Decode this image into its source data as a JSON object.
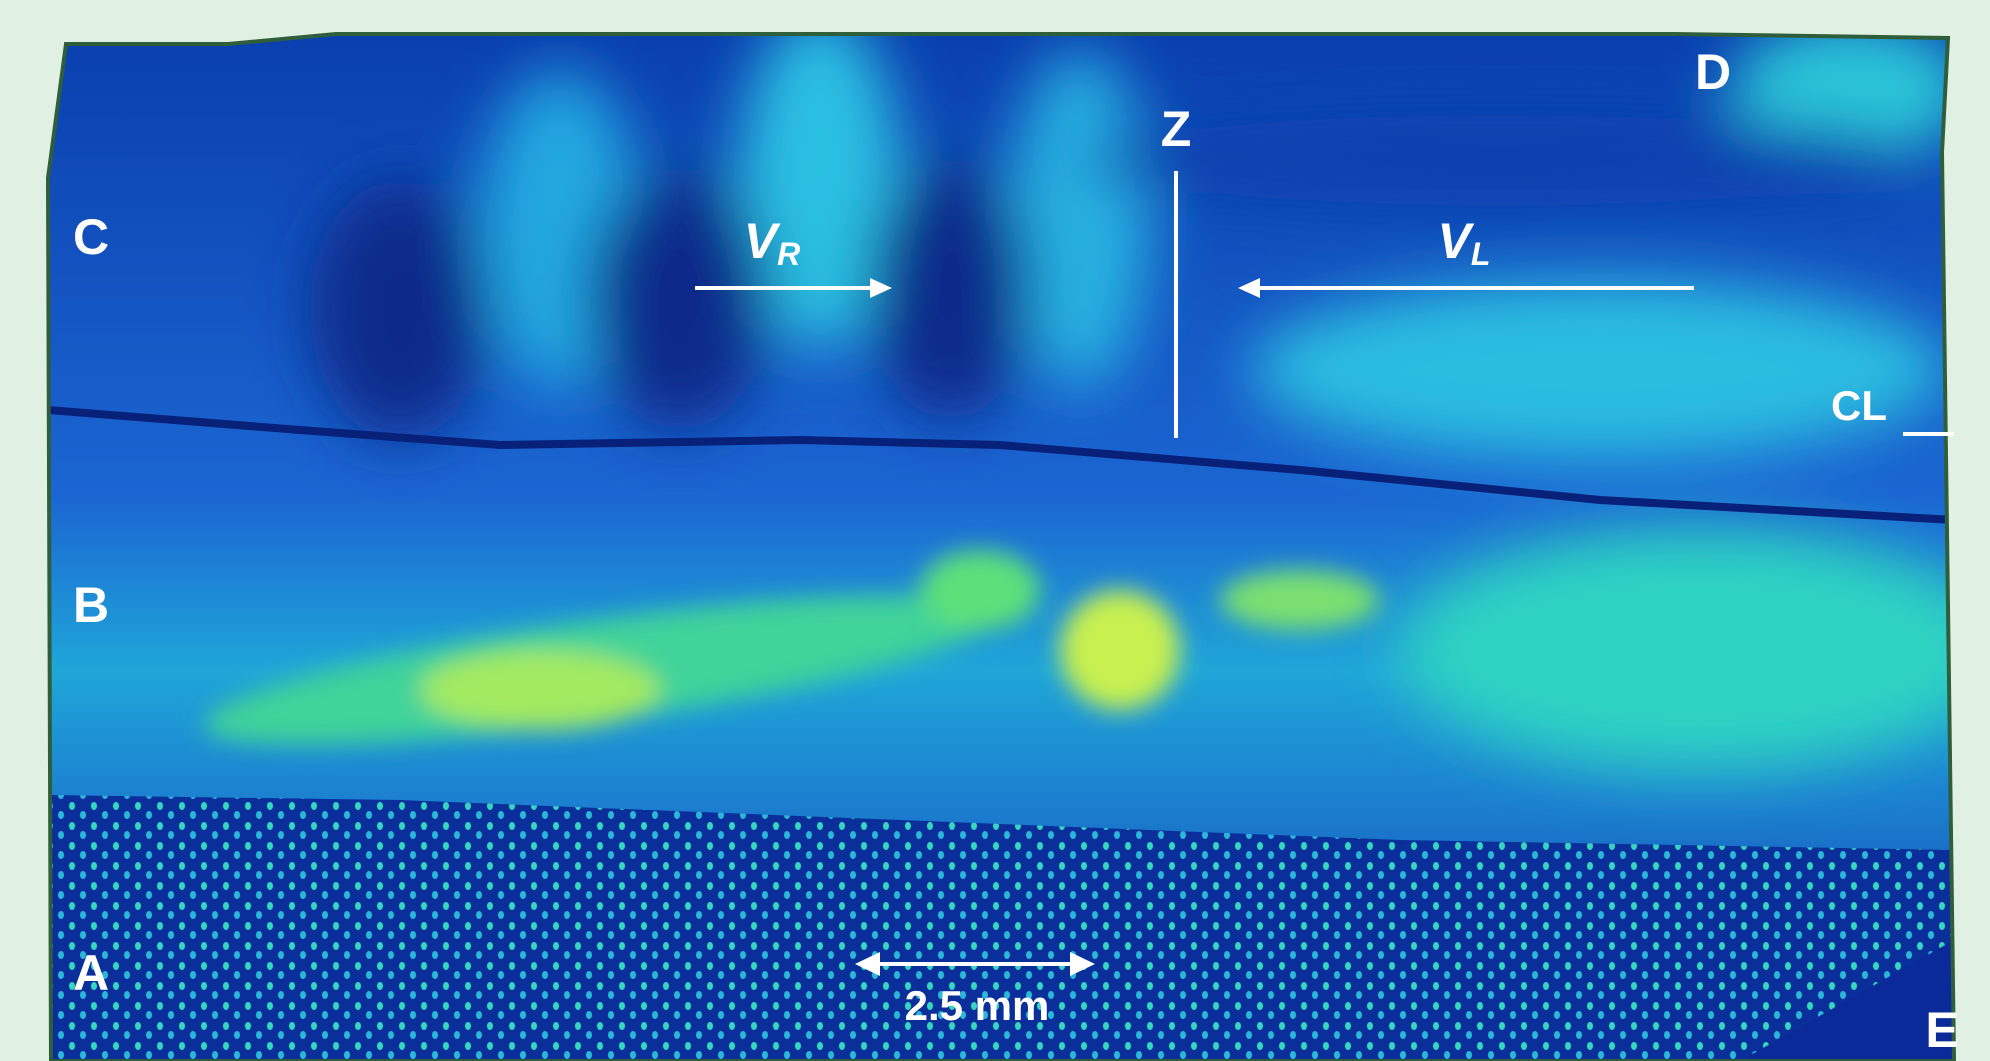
{
  "labels": {
    "c": "C",
    "b": "B",
    "a": "A",
    "d": "D",
    "e": "E",
    "z": "Z",
    "cl": "CL",
    "v_r": {
      "symbol": "V",
      "subscript": "R"
    },
    "v_l": {
      "symbol": "V",
      "subscript": "L"
    },
    "scale_bar": "2.5 mm"
  }
}
